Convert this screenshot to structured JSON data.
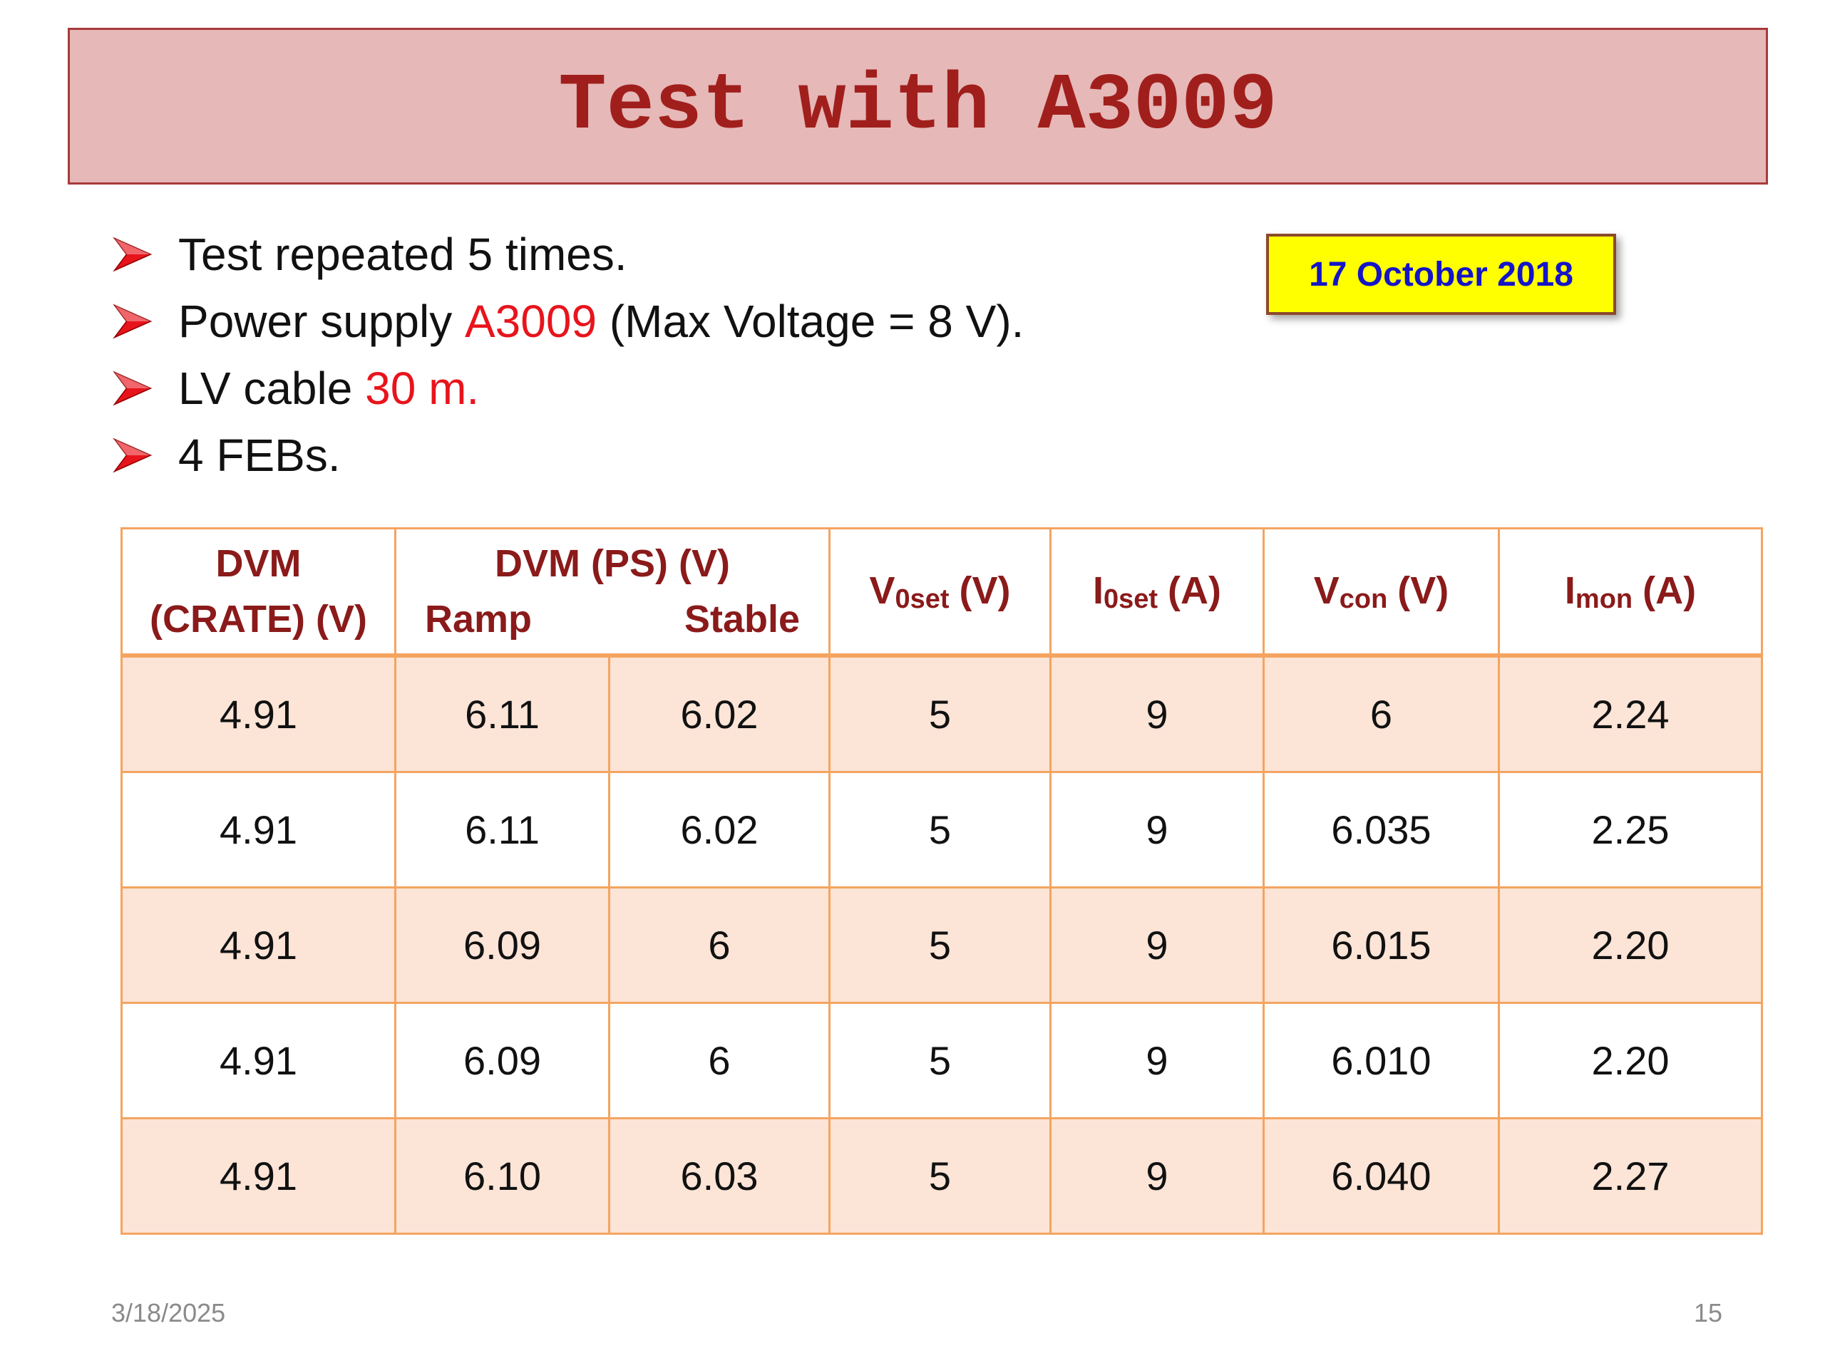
{
  "title": "Test with A3009",
  "date_badge": "17 October 2018",
  "bullets": [
    [
      {
        "text": "Test repeated 5 times."
      }
    ],
    [
      {
        "text": "Power supply "
      },
      {
        "text": "A3009",
        "color": "#e8141c"
      },
      {
        "text": " (Max Voltage = 8 V)."
      }
    ],
    [
      {
        "text": "LV cable "
      },
      {
        "text": "30 m.",
        "color": "#e8141c"
      }
    ],
    [
      {
        "text": "4 FEBs."
      }
    ]
  ],
  "table": {
    "header": {
      "crate": [
        "DVM",
        "(CRATE) (V)"
      ],
      "ps": {
        "title": "DVM (PS) (V)",
        "ramp": "Ramp",
        "stable": "Stable"
      },
      "cols": [
        {
          "main": "V",
          "sub": "0set",
          "unit": "(V)"
        },
        {
          "main": "I",
          "sub": "0set",
          "unit": "(A)"
        },
        {
          "main": "V",
          "sub": "con",
          "unit": "(V)"
        },
        {
          "main": "I",
          "sub": "mon",
          "unit": "(A)"
        }
      ]
    },
    "rows": [
      [
        "4.91",
        "6.11",
        "6.02",
        "5",
        "9",
        "6",
        "2.24"
      ],
      [
        "4.91",
        "6.11",
        "6.02",
        "5",
        "9",
        "6.035",
        "2.25"
      ],
      [
        "4.91",
        "6.09",
        "6",
        "5",
        "9",
        "6.015",
        "2.20"
      ],
      [
        "4.91",
        "6.09",
        "6",
        "5",
        "9",
        "6.010",
        "2.20"
      ],
      [
        "4.91",
        "6.10",
        "6.03",
        "5",
        "9",
        "6.040",
        "2.27"
      ]
    ]
  },
  "footer": {
    "date": "3/18/2025",
    "page": "15"
  }
}
